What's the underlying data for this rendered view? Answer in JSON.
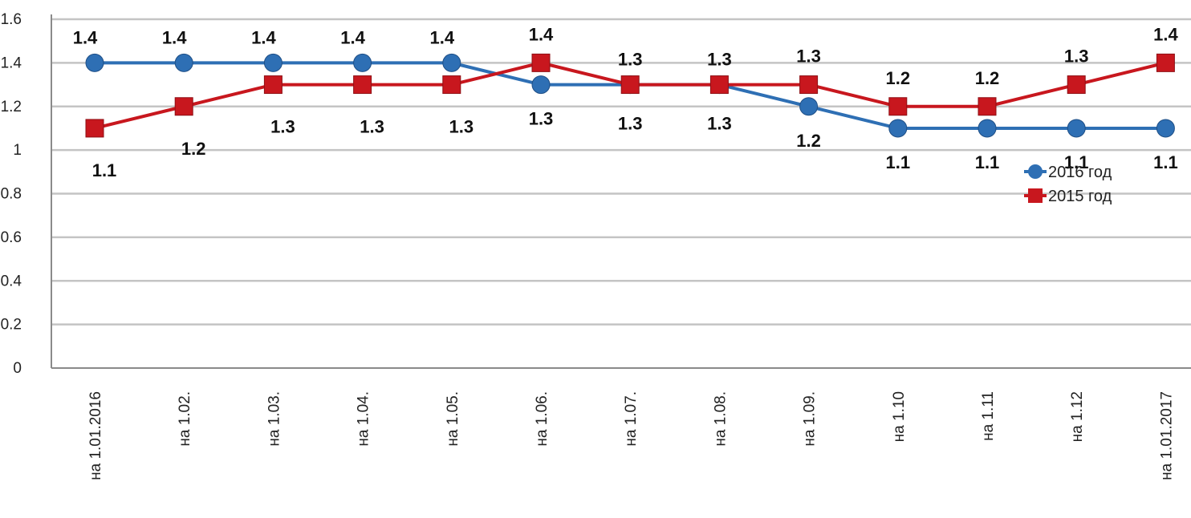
{
  "chart_data": {
    "type": "line",
    "title": "",
    "xlabel": "",
    "ylabel": "",
    "categories": [
      "на 1.01.2016",
      "на 1.02.",
      "на 1.03.",
      "на 1.04.",
      "на 1.05.",
      "на 1.06.",
      "на 1.07.",
      "на 1.08.",
      "на 1.09.",
      "на 1.10",
      "на 1.11",
      "на 1.12",
      "на 1.01.2017"
    ],
    "y_ticks": [
      "0",
      "0.2",
      "0.4",
      "0.6",
      "0.8",
      "1",
      "1.2",
      "1.4",
      "1.6"
    ],
    "ylim": [
      0,
      1.6
    ],
    "grid": true,
    "legend_position": "right",
    "series": [
      {
        "name": "2016 год",
        "color": "#2E6FB4",
        "marker": "circle",
        "values": [
          1.4,
          1.4,
          1.4,
          1.4,
          1.4,
          1.3,
          1.3,
          1.3,
          1.2,
          1.1,
          1.1,
          1.1,
          1.1
        ],
        "labels": [
          "1.4",
          "1.4",
          "1.4",
          "1.4",
          "1.4",
          "1.3",
          "1.3",
          "1.3",
          "1.2",
          "1.1",
          "1.1",
          "1.1",
          "1.1"
        ]
      },
      {
        "name": "2015 год",
        "color": "#C8171E",
        "marker": "square",
        "values": [
          1.1,
          1.2,
          1.3,
          1.3,
          1.3,
          1.4,
          1.3,
          1.3,
          1.3,
          1.2,
          1.2,
          1.3,
          1.4
        ],
        "labels": [
          "1.1",
          "1.2",
          "1.3",
          "1.3",
          "1.3",
          "1.4",
          "1.3",
          "1.3",
          "1.3",
          "1.2",
          "1.2",
          "1.3",
          "1.4"
        ]
      }
    ]
  }
}
